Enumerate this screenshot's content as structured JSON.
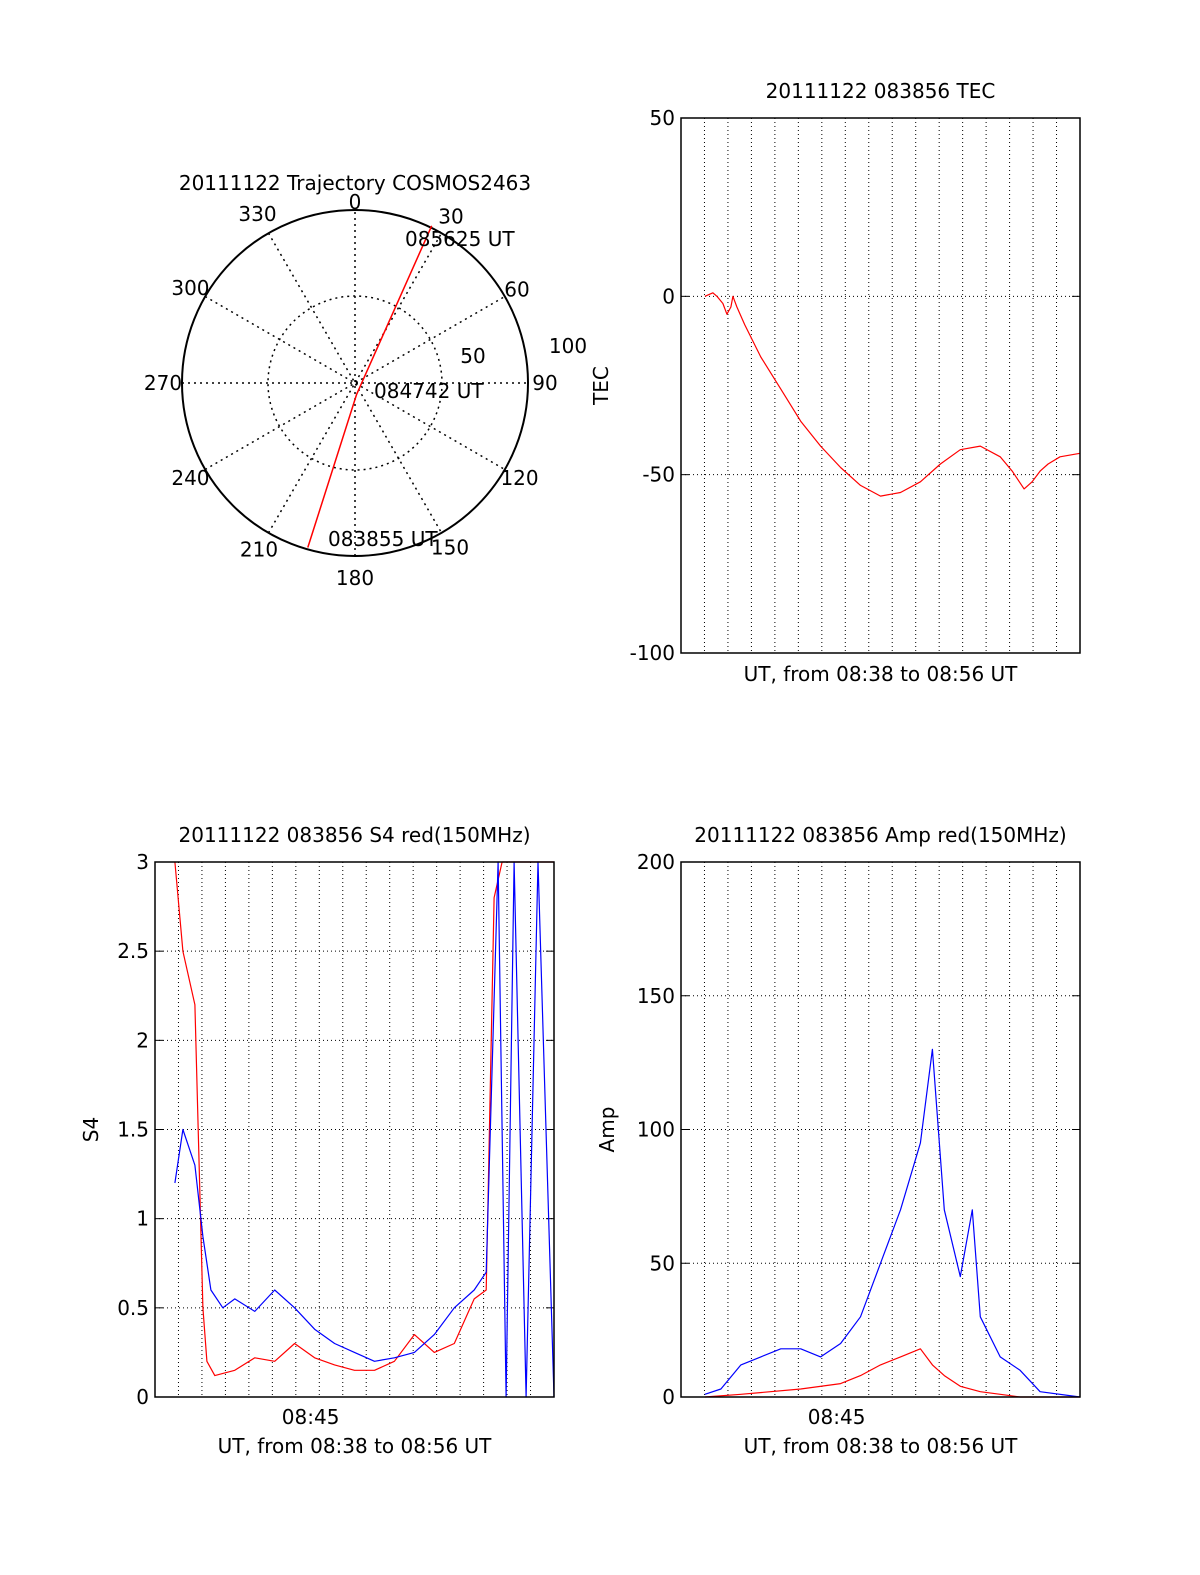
{
  "chart_data": [
    {
      "type": "polar",
      "title": "20111122 Trajectory COSMOS2463",
      "angle_labels": [
        "0",
        "30",
        "60",
        "90",
        "120",
        "150",
        "180",
        "210",
        "240",
        "270",
        "300",
        "330"
      ],
      "radius_labels": [
        "50",
        "100"
      ],
      "trajectory": {
        "color": "#ff0000",
        "points": [
          {
            "az": 196,
            "el_from_center": 89
          },
          {
            "az": 172,
            "el_from_center": 6
          },
          {
            "az": 26,
            "el_from_center": 91
          }
        ]
      },
      "annotations": [
        "085625 UT",
        "084742 UT",
        "083855 UT"
      ]
    },
    {
      "type": "line",
      "title": "20111122 083856 TEC",
      "xlabel": "UT, from 08:38 to 08:56 UT",
      "ylabel": "TEC",
      "ylim": [
        -100,
        50
      ],
      "yticks": [
        "50",
        "0",
        "-50",
        "-100"
      ],
      "grid": true,
      "series": [
        {
          "color": "#ff0000",
          "x": [
            0.06,
            0.08,
            0.09,
            0.105,
            0.115,
            0.125,
            0.13,
            0.14,
            0.16,
            0.2,
            0.25,
            0.3,
            0.35,
            0.4,
            0.45,
            0.5,
            0.55,
            0.6,
            0.65,
            0.7,
            0.75,
            0.8,
            0.83,
            0.86,
            0.88,
            0.9,
            0.92,
            0.95,
            1.0
          ],
          "y": [
            0,
            1,
            0,
            -2,
            -5,
            -3,
            0,
            -3,
            -8,
            -17,
            -26,
            -35,
            -42,
            -48,
            -53,
            -56,
            -55,
            -52,
            -47,
            -43,
            -42,
            -45,
            -49,
            -54,
            -52,
            -49,
            -47,
            -45,
            -44
          ]
        }
      ]
    },
    {
      "type": "line",
      "title": "20111122 083856 S4 red(150MHz)",
      "xlabel": "UT, from 08:38 to 08:56 UT",
      "ylabel": "S4",
      "ylim": [
        0,
        3
      ],
      "yticks": [
        "0",
        "0.5",
        "1",
        "1.5",
        "2",
        "2.5",
        "3"
      ],
      "xticks": [
        "08:45"
      ],
      "grid": true,
      "series": [
        {
          "color": "#ff0000",
          "x": [
            0.05,
            0.07,
            0.1,
            0.12,
            0.13,
            0.15,
            0.2,
            0.25,
            0.3,
            0.35,
            0.4,
            0.45,
            0.5,
            0.55,
            0.6,
            0.65,
            0.7,
            0.75,
            0.8,
            0.83,
            0.85,
            0.87,
            0.9,
            0.93,
            0.96,
            1.0
          ],
          "y": [
            3,
            2.5,
            2.2,
            0.5,
            0.2,
            0.12,
            0.15,
            0.22,
            0.2,
            0.3,
            0.22,
            0.18,
            0.15,
            0.15,
            0.2,
            0.35,
            0.25,
            0.3,
            0.55,
            0.6,
            2.8,
            3,
            3,
            3,
            3,
            3
          ]
        },
        {
          "color": "#0000ff",
          "x": [
            0.05,
            0.07,
            0.1,
            0.12,
            0.14,
            0.17,
            0.2,
            0.25,
            0.3,
            0.35,
            0.4,
            0.45,
            0.5,
            0.55,
            0.6,
            0.65,
            0.7,
            0.75,
            0.8,
            0.83,
            0.86,
            0.88,
            0.9,
            0.93,
            0.96,
            1.0
          ],
          "y": [
            1.2,
            1.5,
            1.3,
            0.9,
            0.6,
            0.5,
            0.55,
            0.48,
            0.6,
            0.5,
            0.38,
            0.3,
            0.25,
            0.2,
            0.22,
            0.25,
            0.35,
            0.5,
            0.6,
            0.7,
            3,
            0,
            3,
            0,
            3,
            0
          ]
        }
      ]
    },
    {
      "type": "line",
      "title": "20111122 083856 Amp red(150MHz)",
      "xlabel": "UT, from 08:38 to 08:56 UT",
      "ylabel": "Amp",
      "ylim": [
        0,
        200
      ],
      "yticks": [
        "0",
        "50",
        "100",
        "150",
        "200"
      ],
      "xticks": [
        "08:45"
      ],
      "grid": true,
      "series": [
        {
          "color": "#ff0000",
          "x": [
            0.06,
            0.15,
            0.3,
            0.4,
            0.45,
            0.5,
            0.55,
            0.6,
            0.63,
            0.66,
            0.7,
            0.75,
            0.8,
            0.85,
            1.0
          ],
          "y": [
            0,
            1,
            3,
            5,
            8,
            12,
            15,
            18,
            12,
            8,
            4,
            2,
            1,
            0,
            0
          ]
        },
        {
          "color": "#0000ff",
          "x": [
            0.06,
            0.1,
            0.15,
            0.2,
            0.25,
            0.3,
            0.35,
            0.4,
            0.45,
            0.5,
            0.55,
            0.6,
            0.63,
            0.66,
            0.7,
            0.73,
            0.75,
            0.8,
            0.85,
            0.9,
            1.0
          ],
          "y": [
            1,
            3,
            12,
            15,
            18,
            18,
            15,
            20,
            30,
            50,
            70,
            95,
            130,
            70,
            45,
            70,
            30,
            15,
            10,
            2,
            0
          ]
        }
      ]
    }
  ]
}
